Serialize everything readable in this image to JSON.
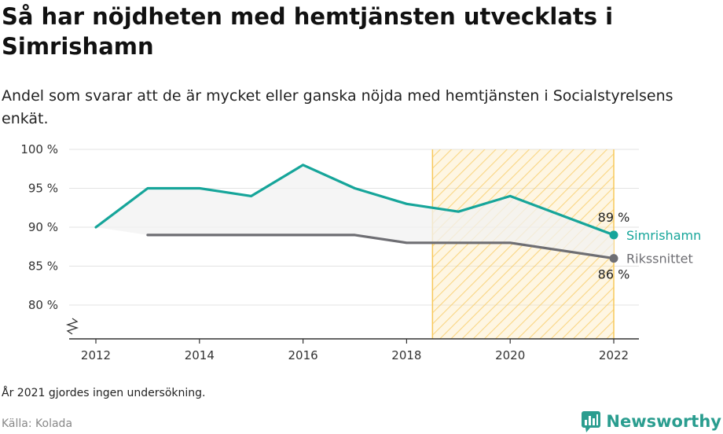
{
  "header": {
    "title": "Så har nöjdheten med hemtjänsten utvecklats i Simrishamn",
    "subtitle": "Andel som svarar att de är mycket eller ganska nöjda med hemtjänsten i Socialstyrelsens enkät."
  },
  "footer": {
    "note": "År 2021 gjordes ingen undersökning.",
    "source": "Källa: Kolada",
    "brand": "Newsworthy"
  },
  "colors": {
    "primary": "#16a59a",
    "secondary": "#6e6e73",
    "highlight_fill": "#fde6b0",
    "highlight_stroke": "#f7c85a",
    "area_fill": "#f2f2f2",
    "grid": "#e3e3e3"
  },
  "chart_data": {
    "type": "line",
    "x": [
      2012,
      2013,
      2014,
      2015,
      2016,
      2017,
      2018,
      2019,
      2020,
      2022
    ],
    "series": [
      {
        "name": "Simrishamn",
        "values": [
          90,
          95,
          95,
          94,
          98,
          95,
          93,
          92,
          94,
          89
        ],
        "end_label": "89 %"
      },
      {
        "name": "Rikssnittet",
        "values": [
          null,
          89,
          89,
          89,
          89,
          89,
          88,
          88,
          88,
          86
        ],
        "end_label": "86 %"
      }
    ],
    "xlim": [
      2012,
      2022
    ],
    "ylim": [
      80,
      100
    ],
    "yticks": [
      80,
      85,
      90,
      95,
      100
    ],
    "ytick_labels": [
      "80 %",
      "85 %",
      "90 %",
      "95 %",
      "100 %"
    ],
    "xticks": [
      2012,
      2014,
      2016,
      2018,
      2020,
      2022
    ],
    "xtick_labels": [
      "2012",
      "2014",
      "2016",
      "2018",
      "2020",
      "2022"
    ],
    "highlight_range": [
      2018.5,
      2022
    ],
    "broken_y_axis": true,
    "grid": true
  }
}
